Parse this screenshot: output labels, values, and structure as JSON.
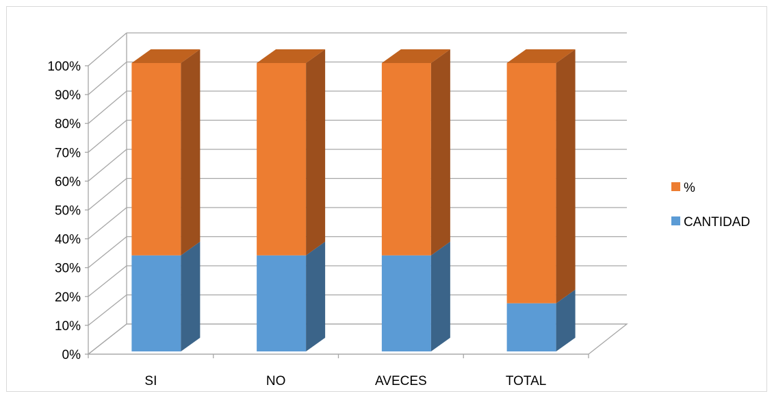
{
  "chart_data": {
    "type": "bar",
    "stacking": "percent",
    "three_d": true,
    "categories": [
      "SI",
      "NO",
      "AVECES",
      "TOTAL"
    ],
    "series": [
      {
        "name": "CANTIDAD",
        "values": [
          33.3,
          33.3,
          33.3,
          16.7
        ],
        "color": "#5b9bd5",
        "side_color": "#3b6489",
        "top_color": "#4a82b7"
      },
      {
        "name": "%",
        "values": [
          66.7,
          66.7,
          66.7,
          83.3
        ],
        "color": "#ed7d31",
        "side_color": "#9c4f1d",
        "top_color": "#c0621f"
      }
    ],
    "yticks": [
      "0%",
      "10%",
      "20%",
      "30%",
      "40%",
      "50%",
      "60%",
      "70%",
      "80%",
      "90%",
      "100%"
    ],
    "ylim": [
      0,
      100
    ],
    "grid": true,
    "legend_position": "right",
    "legend_order": [
      "%",
      "CANTIDAD"
    ]
  }
}
